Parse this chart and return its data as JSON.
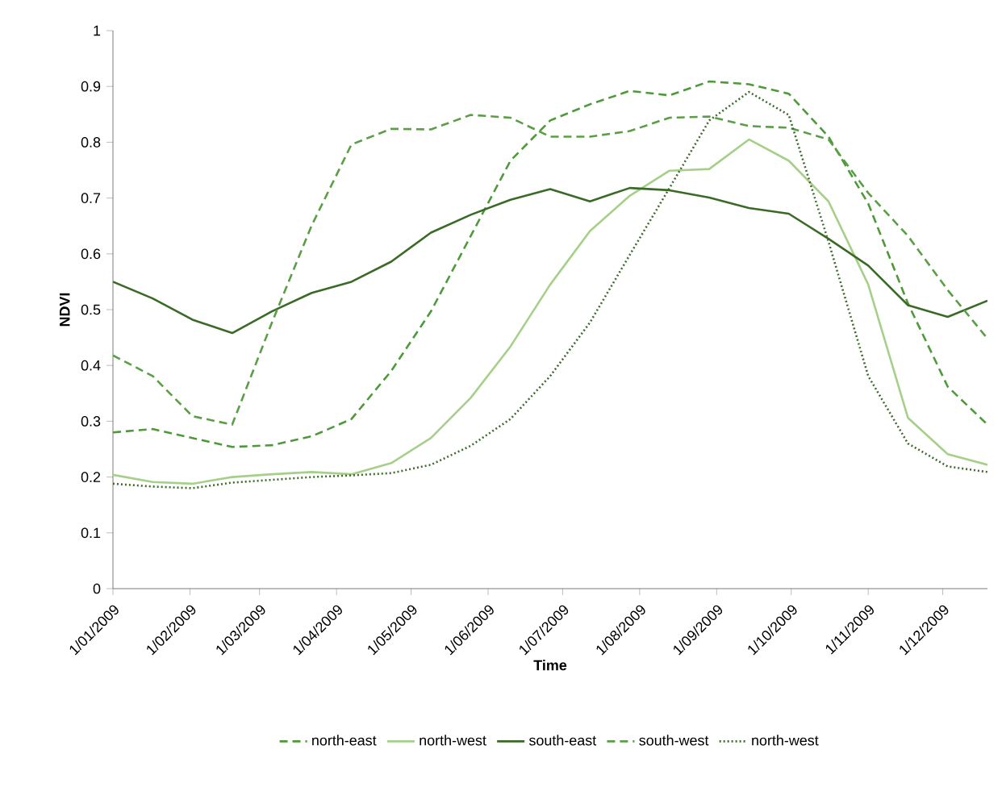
{
  "chart_data": {
    "type": "line",
    "xlabel": "Time",
    "ylabel": "NDVI",
    "x": [
      "2009-01-01",
      "2009-01-17",
      "2009-02-02",
      "2009-02-18",
      "2009-03-06",
      "2009-03-22",
      "2009-04-07",
      "2009-04-23",
      "2009-05-09",
      "2009-05-25",
      "2009-06-10",
      "2009-06-26",
      "2009-07-12",
      "2009-07-28",
      "2009-08-13",
      "2009-08-29",
      "2009-09-14",
      "2009-09-30",
      "2009-10-16",
      "2009-11-01",
      "2009-11-17",
      "2009-12-03",
      "2009-12-19"
    ],
    "series": [
      {
        "name": "north-east",
        "color": "#4e9a3a",
        "line_style": "dashed",
        "values": [
          0.28,
          0.286,
          0.27,
          0.254,
          0.257,
          0.273,
          0.304,
          0.39,
          0.497,
          0.632,
          0.767,
          0.839,
          0.868,
          0.892,
          0.884,
          0.909,
          0.904,
          0.887,
          0.81,
          0.69,
          0.511,
          0.362,
          0.294
        ]
      },
      {
        "name": "north-west",
        "color": "#a6d08a",
        "line_style": "solid",
        "values": [
          0.204,
          0.191,
          0.188,
          0.2,
          0.205,
          0.209,
          0.205,
          0.225,
          0.27,
          0.342,
          0.434,
          0.545,
          0.641,
          0.704,
          0.749,
          0.752,
          0.805,
          0.767,
          0.694,
          0.545,
          0.306,
          0.241,
          0.222
        ]
      },
      {
        "name": "south-east",
        "color": "#3a6b26",
        "line_style": "solid",
        "values": [
          0.55,
          0.52,
          0.482,
          0.458,
          0.497,
          0.53,
          0.55,
          0.586,
          0.638,
          0.67,
          0.697,
          0.716,
          0.694,
          0.718,
          0.714,
          0.701,
          0.682,
          0.672,
          0.627,
          0.579,
          0.508,
          0.487,
          0.516
        ]
      },
      {
        "name": "south-west",
        "color": "#5a9e45",
        "line_style": "dashed",
        "values": [
          0.418,
          0.381,
          0.309,
          0.294,
          0.477,
          0.651,
          0.796,
          0.824,
          0.823,
          0.849,
          0.844,
          0.81,
          0.81,
          0.82,
          0.844,
          0.846,
          0.829,
          0.826,
          0.805,
          0.709,
          0.632,
          0.535,
          0.448
        ]
      },
      {
        "name": "north-west",
        "color": "#3f6b2e",
        "line_style": "dotted",
        "values": [
          0.188,
          0.183,
          0.18,
          0.19,
          0.195,
          0.2,
          0.203,
          0.207,
          0.222,
          0.256,
          0.304,
          0.381,
          0.477,
          0.598,
          0.718,
          0.839,
          0.89,
          0.849,
          0.622,
          0.381,
          0.26,
          0.219,
          0.209
        ]
      }
    ],
    "xlim": [
      "2009-01-01",
      "2009-12-19"
    ],
    "xticks": [
      {
        "value": "2009-01-01",
        "label": "1/01/2009"
      },
      {
        "value": "2009-02-01",
        "label": "1/02/2009"
      },
      {
        "value": "2009-03-01",
        "label": "1/03/2009"
      },
      {
        "value": "2009-04-01",
        "label": "1/04/2009"
      },
      {
        "value": "2009-05-01",
        "label": "1/05/2009"
      },
      {
        "value": "2009-06-01",
        "label": "1/06/2009"
      },
      {
        "value": "2009-07-01",
        "label": "1/07/2009"
      },
      {
        "value": "2009-08-01",
        "label": "1/08/2009"
      },
      {
        "value": "2009-09-01",
        "label": "1/09/2009"
      },
      {
        "value": "2009-10-01",
        "label": "1/10/2009"
      },
      {
        "value": "2009-11-01",
        "label": "1/11/2009"
      },
      {
        "value": "2009-12-01",
        "label": "1/12/2009"
      }
    ],
    "ylim": [
      0,
      1
    ],
    "yticks": [
      0,
      0.1,
      0.2,
      0.3,
      0.4,
      0.5,
      0.6,
      0.7,
      0.8,
      0.9,
      1
    ],
    "grid": false,
    "legend": "bottom",
    "marker": "none"
  }
}
